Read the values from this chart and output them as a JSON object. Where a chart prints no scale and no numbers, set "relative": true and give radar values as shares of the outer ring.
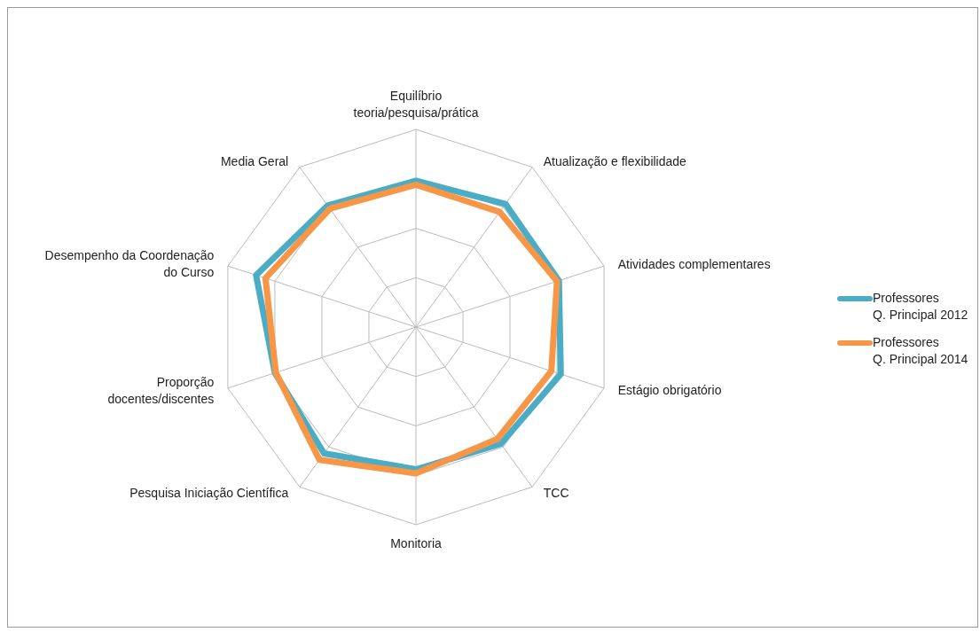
{
  "chart_data": {
    "type": "radar",
    "relative": true,
    "legend": "right",
    "grid": true,
    "categories": [
      "Equilíbrio\nteoria/pesquisa/prática",
      "Atualização e flexibilidade",
      "Atividades complementares",
      "Estágio obrigatório",
      "TCC",
      "Monitoria",
      "Pesquisa Iniciação Científica",
      "Proporção\ndocentes/discentes",
      "Desempenho da Coordenação\ndo Curso",
      "Media Geral"
    ],
    "series": [
      {
        "name": "Professores\nQ. Principal 2012",
        "color": "#4bacc6",
        "values": [
          0.74,
          0.77,
          0.76,
          0.77,
          0.73,
          0.72,
          0.79,
          0.75,
          0.85,
          0.76
        ]
      },
      {
        "name": "Professores\nQ. Principal 2014",
        "color": "#f79646",
        "values": [
          0.72,
          0.72,
          0.75,
          0.72,
          0.7,
          0.74,
          0.83,
          0.745,
          0.8,
          0.74
        ]
      }
    ]
  }
}
